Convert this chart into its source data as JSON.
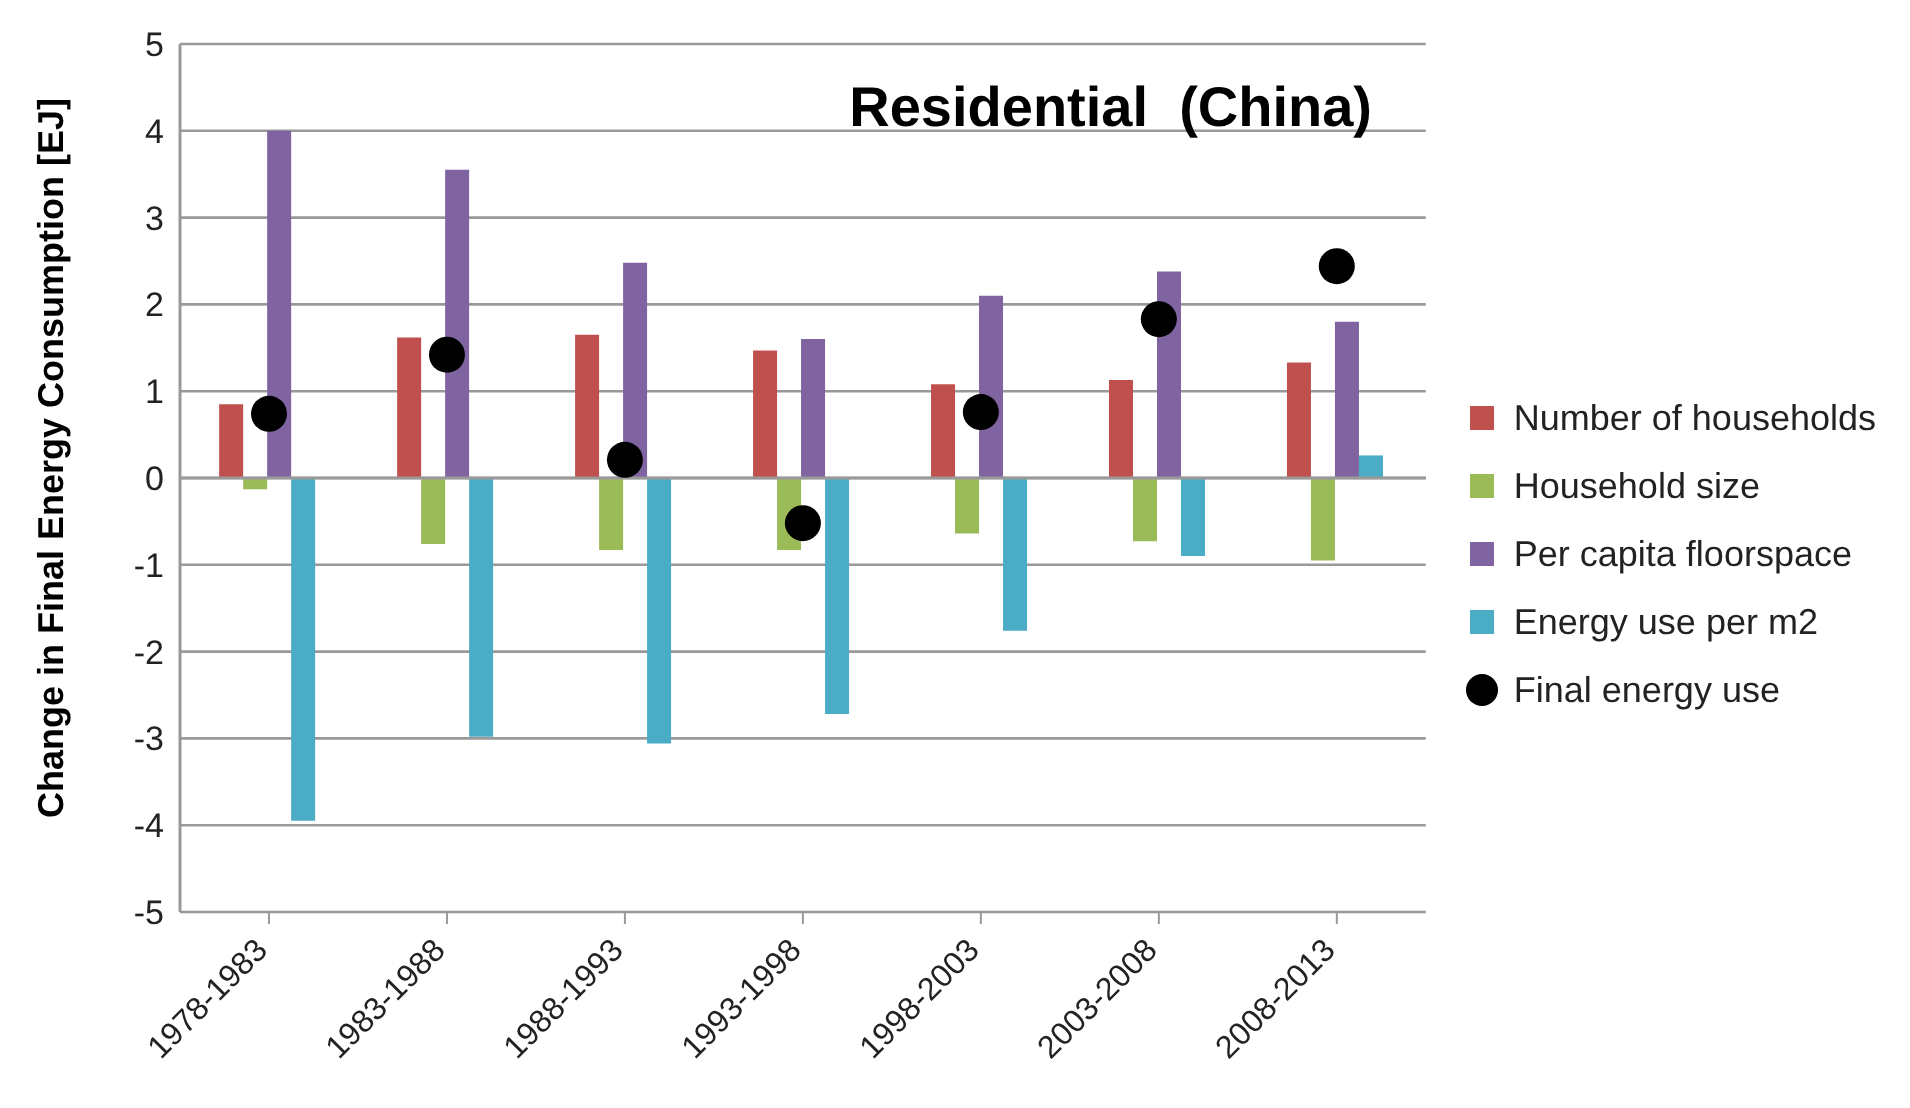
{
  "chart_data": {
    "type": "bar",
    "title": "Residential  (China)",
    "ylabel": "Change in Final Energy Consumption [EJ]",
    "categories": [
      "1978-1983",
      "1983-1988",
      "1988-1993",
      "1993-1998",
      "1998-2003",
      "2003-2008",
      "2008-2013"
    ],
    "series": [
      {
        "name": "Number of households",
        "color": "#c0504d",
        "values": [
          0.85,
          1.62,
          1.65,
          1.47,
          1.08,
          1.13,
          1.33
        ]
      },
      {
        "name": "Household size",
        "color": "#9bbb59",
        "values": [
          -0.13,
          -0.76,
          -0.83,
          -0.83,
          -0.64,
          -0.73,
          -0.95
        ]
      },
      {
        "name": "Per capita floorspace",
        "color": "#8064a2",
        "values": [
          4.0,
          3.55,
          2.48,
          1.6,
          2.1,
          2.38,
          1.8
        ]
      },
      {
        "name": "Energy use per m2",
        "color": "#4bacc6",
        "values": [
          -3.95,
          -2.98,
          -3.06,
          -2.72,
          -1.76,
          -0.9,
          0.26
        ]
      },
      {
        "name": "Final energy use",
        "type": "scatter",
        "color": "#000000",
        "values": [
          0.74,
          1.42,
          0.21,
          -0.52,
          0.76,
          1.83,
          2.44
        ]
      }
    ],
    "ylim": [
      -5,
      5
    ],
    "yticks": [
      -5,
      -4,
      -3,
      -2,
      -1,
      0,
      1,
      2,
      3,
      4,
      5
    ],
    "grid": "y",
    "legend": "right",
    "marker": "circle"
  }
}
